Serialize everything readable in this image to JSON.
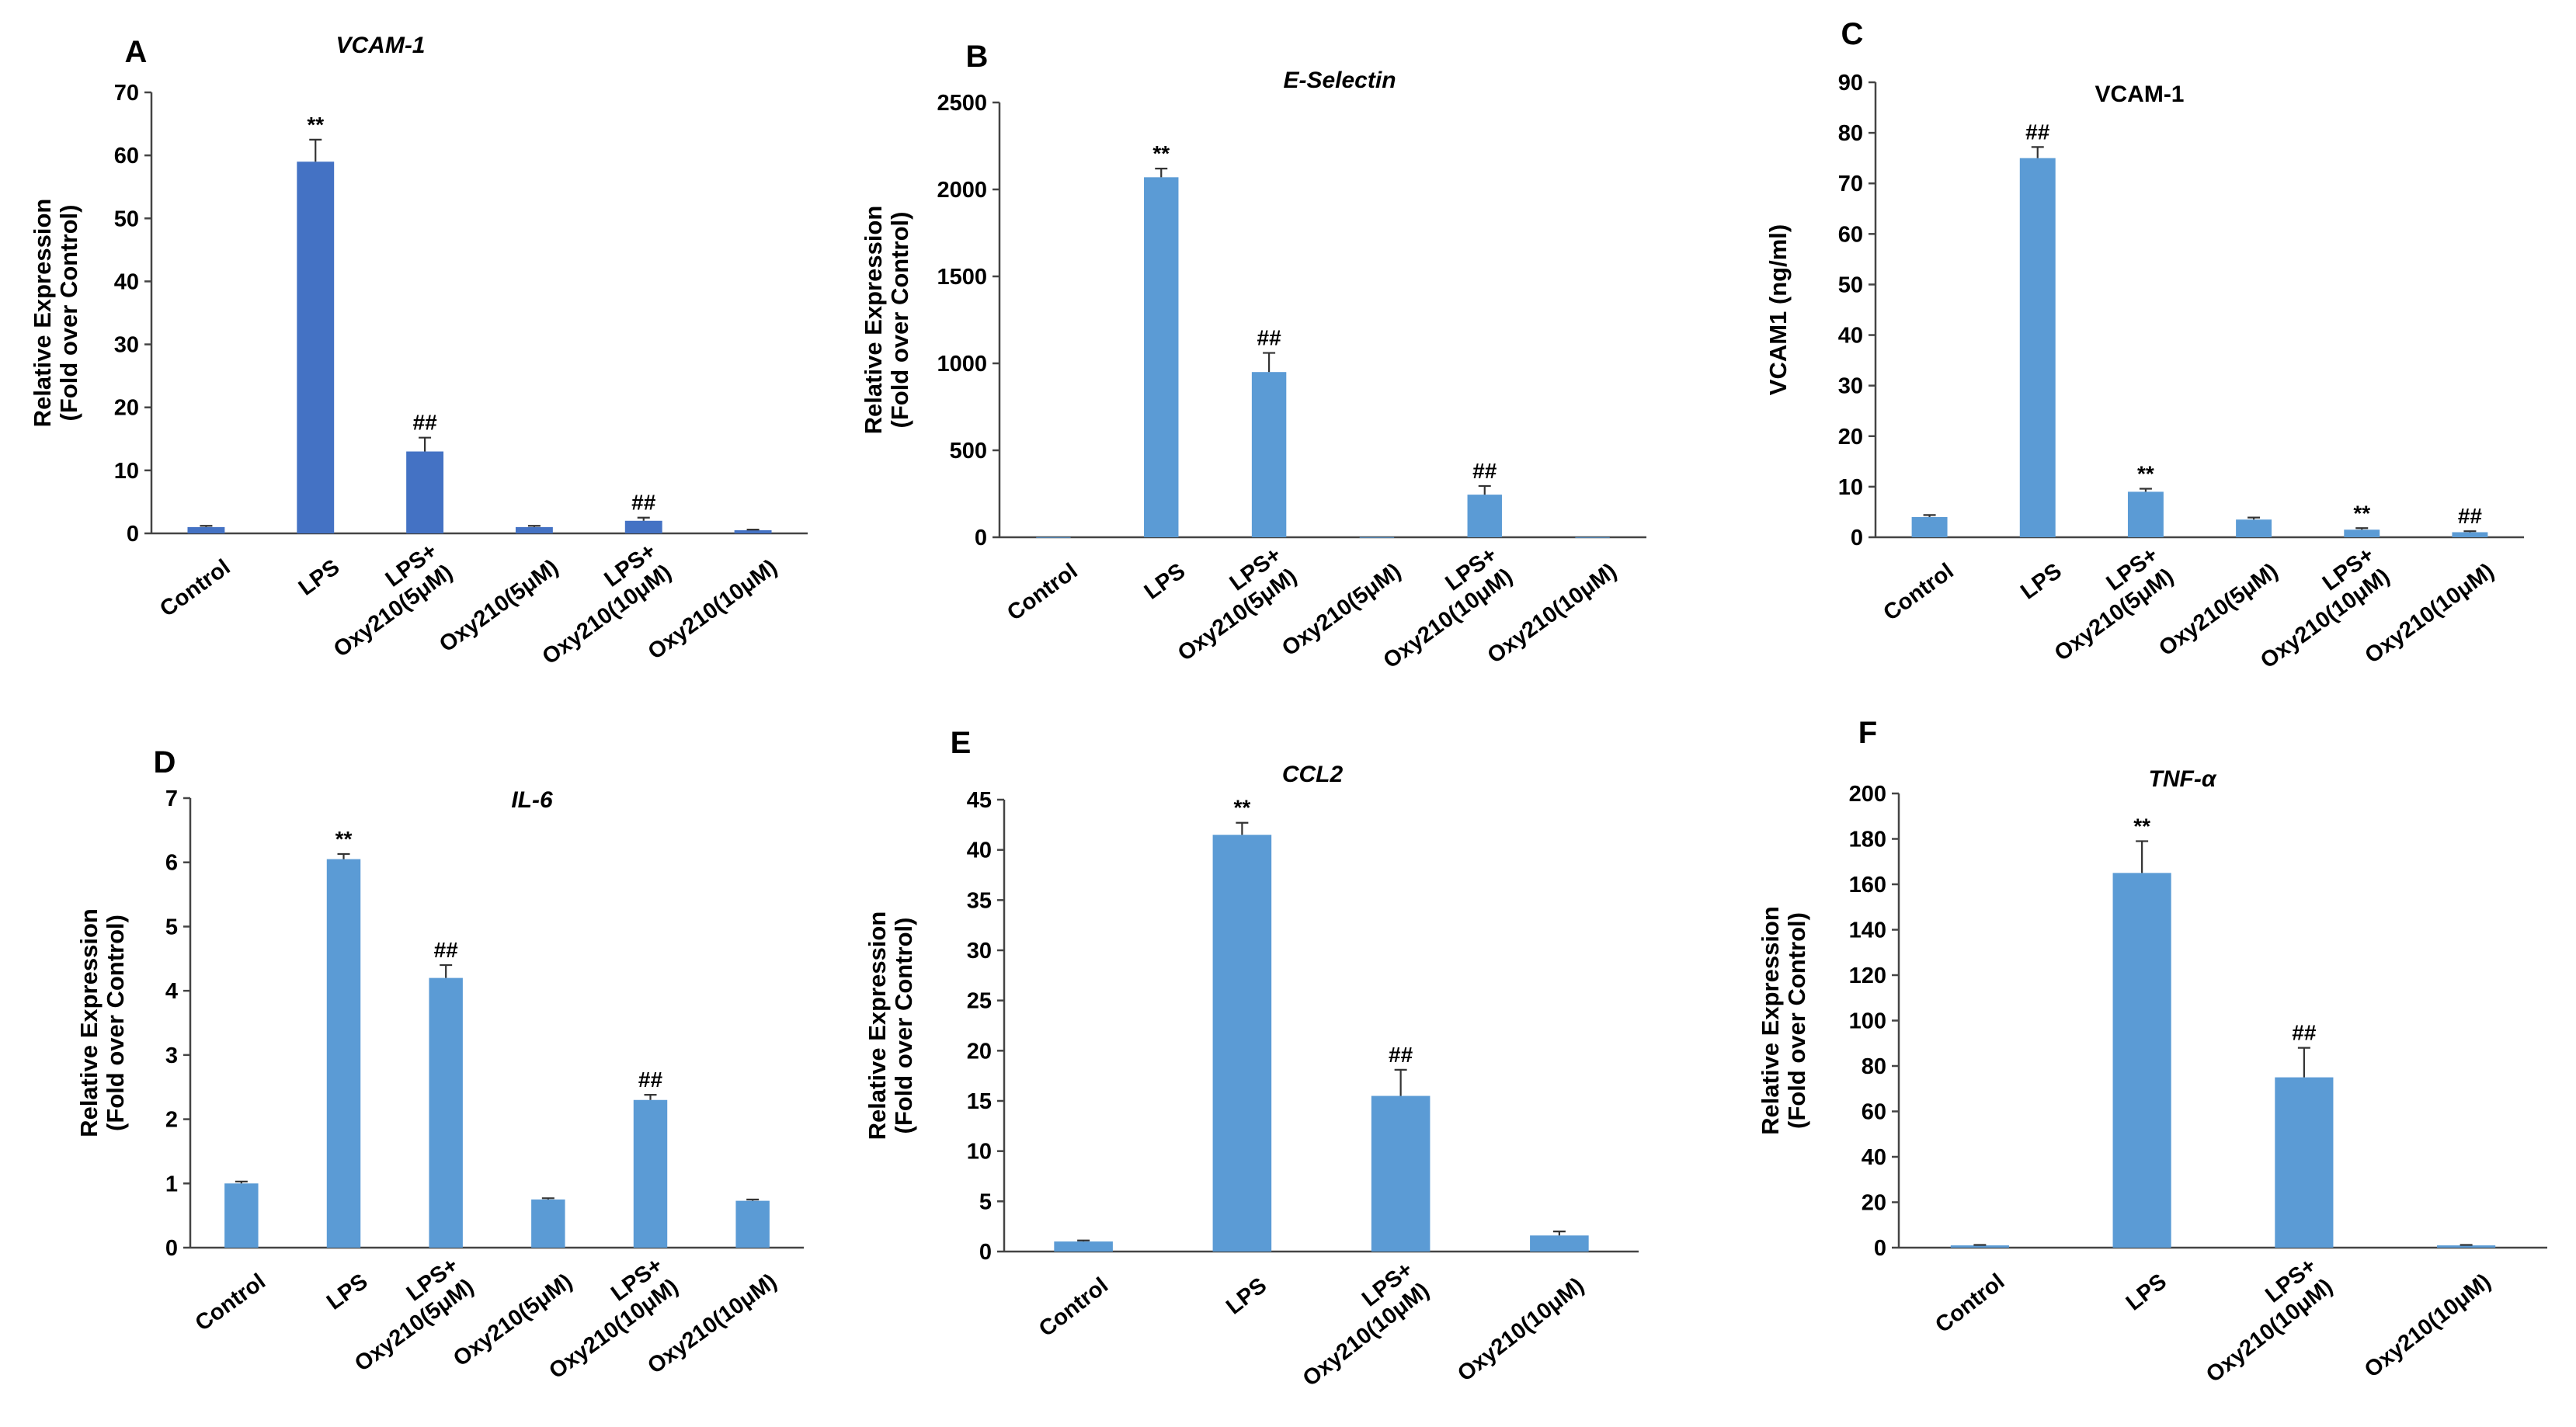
{
  "figure": {
    "panels": [
      "A",
      "B",
      "C",
      "D",
      "E",
      "F"
    ]
  },
  "chart_data": [
    {
      "type": "bar",
      "panel": "A",
      "title": "VCAM-1",
      "title_italic": true,
      "ylabel_line1": "Relative Expression",
      "ylabel_line2": "(Fold over Control)",
      "ylim": [
        0,
        70
      ],
      "yticks": [
        0,
        10,
        20,
        30,
        40,
        50,
        60,
        70
      ],
      "color": "#4472c4",
      "categories": [
        [
          "Control"
        ],
        [
          "LPS"
        ],
        [
          "LPS+",
          "Oxy210(5μM)"
        ],
        [
          "Oxy210(5μM)"
        ],
        [
          "LPS+",
          "Oxy210(10μM)"
        ],
        [
          "Oxy210(10μM)"
        ]
      ],
      "values": [
        1,
        59,
        13,
        1,
        2,
        0.5
      ],
      "errors": [
        0.2,
        3.5,
        2.2,
        0.2,
        0.5,
        0.1
      ],
      "annotations": [
        "",
        "**",
        "##",
        "",
        "##",
        ""
      ]
    },
    {
      "type": "bar",
      "panel": "B",
      "title": "E-Selectin",
      "title_italic": true,
      "ylabel_line1": "Relative Expression",
      "ylabel_line2": "(Fold over Control)",
      "ylim": [
        0,
        2500
      ],
      "yticks": [
        0,
        500,
        1000,
        1500,
        2000,
        2500
      ],
      "color": "#5b9bd5",
      "categories": [
        [
          "Control"
        ],
        [
          "LPS"
        ],
        [
          "LPS+",
          "Oxy210(5μM)"
        ],
        [
          "Oxy210(5μM)"
        ],
        [
          "LPS+",
          "Oxy210(10μM)"
        ],
        [
          "Oxy210(10μM)"
        ]
      ],
      "values": [
        1,
        2070,
        950,
        1,
        245,
        1
      ],
      "errors": [
        0,
        50,
        110,
        0,
        50,
        0
      ],
      "annotations": [
        "",
        "**",
        "##",
        "",
        "##",
        ""
      ]
    },
    {
      "type": "bar",
      "panel": "C",
      "title": "VCAM-1",
      "title_italic": false,
      "ylabel_line1": "VCAM1 (ng/ml)",
      "ylabel_line2": "",
      "ylim": [
        0,
        90
      ],
      "yticks": [
        0,
        10,
        20,
        30,
        40,
        50,
        60,
        70,
        80,
        90
      ],
      "color": "#5b9bd5",
      "categories": [
        [
          "Control"
        ],
        [
          "LPS"
        ],
        [
          "LPS+",
          "Oxy210(5μM)"
        ],
        [
          "Oxy210(5μM)"
        ],
        [
          "LPS+",
          "Oxy210(10μM)"
        ],
        [
          "Oxy210(10μM)"
        ]
      ],
      "values": [
        4,
        75,
        9,
        3.5,
        1.5,
        1
      ],
      "errors": [
        0.4,
        2.2,
        0.6,
        0.4,
        0.3,
        0.2
      ],
      "annotations": [
        "",
        "##",
        "**",
        "",
        "**",
        "##"
      ]
    },
    {
      "type": "bar",
      "panel": "D",
      "title": "IL-6",
      "title_italic": true,
      "ylabel_line1": "Relative Expression",
      "ylabel_line2": "(Fold over Control)",
      "ylim": [
        0,
        7
      ],
      "yticks": [
        0,
        1,
        2,
        3,
        4,
        5,
        6,
        7
      ],
      "color": "#5b9bd5",
      "categories": [
        [
          "Control"
        ],
        [
          "LPS"
        ],
        [
          "LPS+",
          "Oxy210(5μM)"
        ],
        [
          "Oxy210(5μM)"
        ],
        [
          "LPS+",
          "Oxy210(10μM)"
        ],
        [
          "Oxy210(10μM)"
        ]
      ],
      "values": [
        1,
        6.05,
        4.2,
        0.75,
        2.3,
        0.73
      ],
      "errors": [
        0.03,
        0.08,
        0.2,
        0.02,
        0.08,
        0.02
      ],
      "annotations": [
        "",
        "**",
        "##",
        "",
        "##",
        ""
      ]
    },
    {
      "type": "bar",
      "panel": "E",
      "title": "CCL2",
      "title_italic": true,
      "ylabel_line1": "Relative Expression",
      "ylabel_line2": "(Fold over Control)",
      "ylim": [
        0,
        45
      ],
      "yticks": [
        0,
        5,
        10,
        15,
        20,
        25,
        30,
        35,
        40,
        45
      ],
      "color": "#5b9bd5",
      "categories": [
        [
          "Control"
        ],
        [
          "LPS"
        ],
        [
          "LPS+",
          "Oxy210(10μM)"
        ],
        [
          "Oxy210(10μM)"
        ]
      ],
      "values": [
        1,
        41.5,
        15.5,
        1.6
      ],
      "errors": [
        0.1,
        1.2,
        2.6,
        0.4
      ],
      "annotations": [
        "",
        "**",
        "##",
        ""
      ]
    },
    {
      "type": "bar",
      "panel": "F",
      "title": "TNF-α",
      "title_italic": true,
      "ylabel_line1": "Relative Expression",
      "ylabel_line2": "(Fold over Control)",
      "ylim": [
        0,
        200
      ],
      "yticks": [
        0,
        20,
        40,
        60,
        80,
        100,
        120,
        140,
        160,
        180,
        200
      ],
      "color": "#5b9bd5",
      "categories": [
        [
          "Control"
        ],
        [
          "LPS"
        ],
        [
          "LPS+",
          "Oxy210(10μM)"
        ],
        [
          "Oxy210(10μM)"
        ]
      ],
      "values": [
        1,
        165,
        75,
        1
      ],
      "errors": [
        0.2,
        14,
        13,
        0.2
      ],
      "annotations": [
        "",
        "**",
        "##",
        ""
      ]
    }
  ]
}
